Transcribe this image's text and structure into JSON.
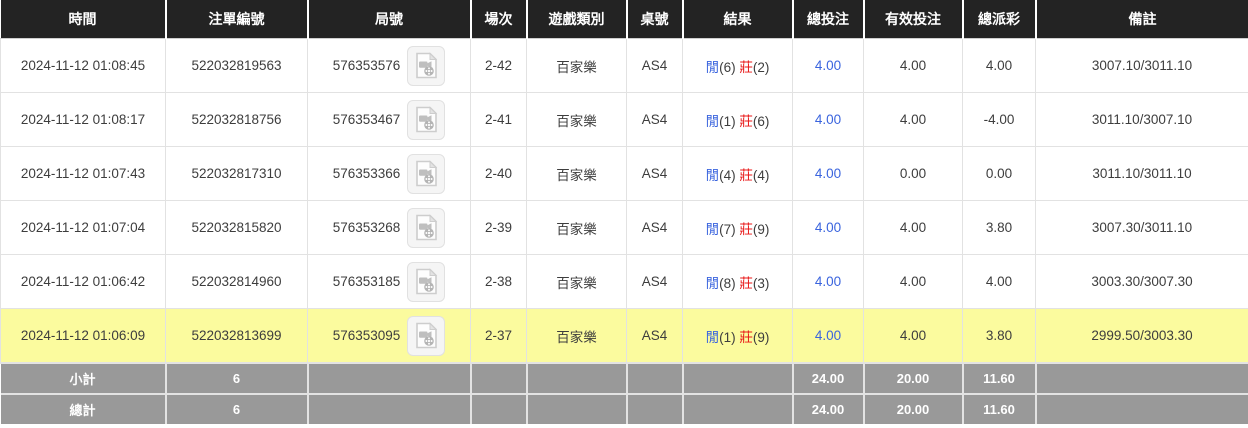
{
  "table": {
    "columns": [
      {
        "key": "time",
        "label": "時間"
      },
      {
        "key": "bet_id",
        "label": "注單編號"
      },
      {
        "key": "round_id",
        "label": "局號"
      },
      {
        "key": "session",
        "label": "場次"
      },
      {
        "key": "game_type",
        "label": "遊戲類別"
      },
      {
        "key": "table_no",
        "label": "桌號"
      },
      {
        "key": "result",
        "label": "結果"
      },
      {
        "key": "total_bet",
        "label": "總投注"
      },
      {
        "key": "valid_bet",
        "label": "有效投注"
      },
      {
        "key": "total_payout",
        "label": "總派彩"
      },
      {
        "key": "remark",
        "label": "備註"
      }
    ],
    "rows": [
      {
        "time": "2024-11-12 01:08:45",
        "bet_id": "522032819563",
        "round_id": "576353576",
        "session": "2-42",
        "game_type": "百家樂",
        "table_no": "AS4",
        "result": {
          "player_label": "閒",
          "player_value": "(6)",
          "banker_label": "莊",
          "banker_value": "(2)"
        },
        "total_bet": "4.00",
        "valid_bet": "4.00",
        "total_payout": "4.00",
        "payout_negative": false,
        "remark": "3007.10/3011.10",
        "highlighted": false
      },
      {
        "time": "2024-11-12 01:08:17",
        "bet_id": "522032818756",
        "round_id": "576353467",
        "session": "2-41",
        "game_type": "百家樂",
        "table_no": "AS4",
        "result": {
          "player_label": "閒",
          "player_value": "(1)",
          "banker_label": "莊",
          "banker_value": "(6)"
        },
        "total_bet": "4.00",
        "valid_bet": "4.00",
        "total_payout": "-4.00",
        "payout_negative": true,
        "remark": "3011.10/3007.10",
        "highlighted": false
      },
      {
        "time": "2024-11-12 01:07:43",
        "bet_id": "522032817310",
        "round_id": "576353366",
        "session": "2-40",
        "game_type": "百家樂",
        "table_no": "AS4",
        "result": {
          "player_label": "閒",
          "player_value": "(4)",
          "banker_label": "莊",
          "banker_value": "(4)"
        },
        "total_bet": "4.00",
        "valid_bet": "0.00",
        "total_payout": "0.00",
        "payout_negative": false,
        "remark": "3011.10/3011.10",
        "highlighted": false
      },
      {
        "time": "2024-11-12 01:07:04",
        "bet_id": "522032815820",
        "round_id": "576353268",
        "session": "2-39",
        "game_type": "百家樂",
        "table_no": "AS4",
        "result": {
          "player_label": "閒",
          "player_value": "(7)",
          "banker_label": "莊",
          "banker_value": "(9)"
        },
        "total_bet": "4.00",
        "valid_bet": "4.00",
        "total_payout": "3.80",
        "payout_negative": false,
        "remark": "3007.30/3011.10",
        "highlighted": false
      },
      {
        "time": "2024-11-12 01:06:42",
        "bet_id": "522032814960",
        "round_id": "576353185",
        "session": "2-38",
        "game_type": "百家樂",
        "table_no": "AS4",
        "result": {
          "player_label": "閒",
          "player_value": "(8)",
          "banker_label": "莊",
          "banker_value": "(3)"
        },
        "total_bet": "4.00",
        "valid_bet": "4.00",
        "total_payout": "4.00",
        "payout_negative": false,
        "remark": "3003.30/3007.30",
        "highlighted": false
      },
      {
        "time": "2024-11-12 01:06:09",
        "bet_id": "522032813699",
        "round_id": "576353095",
        "session": "2-37",
        "game_type": "百家樂",
        "table_no": "AS4",
        "result": {
          "player_label": "閒",
          "player_value": "(1)",
          "banker_label": "莊",
          "banker_value": "(9)"
        },
        "total_bet": "4.00",
        "valid_bet": "4.00",
        "total_payout": "3.80",
        "payout_negative": false,
        "remark": "2999.50/3003.30",
        "highlighted": true
      }
    ],
    "summary": [
      {
        "label": "小計",
        "count": "6",
        "total_bet": "24.00",
        "valid_bet": "20.00",
        "total_payout": "11.60"
      },
      {
        "label": "總計",
        "count": "6",
        "total_bet": "24.00",
        "valid_bet": "20.00",
        "total_payout": "11.60"
      }
    ]
  },
  "icons": {
    "round_video": "video-replay-icon"
  },
  "colors": {
    "header_bg": "#232323",
    "player_blue": "#3a64de",
    "banker_red": "#e81717",
    "amount_blue": "#3a64de",
    "negative_red": "#e81717",
    "highlight_yellow": "#fbfb9e",
    "summary_gray": "#999999"
  }
}
